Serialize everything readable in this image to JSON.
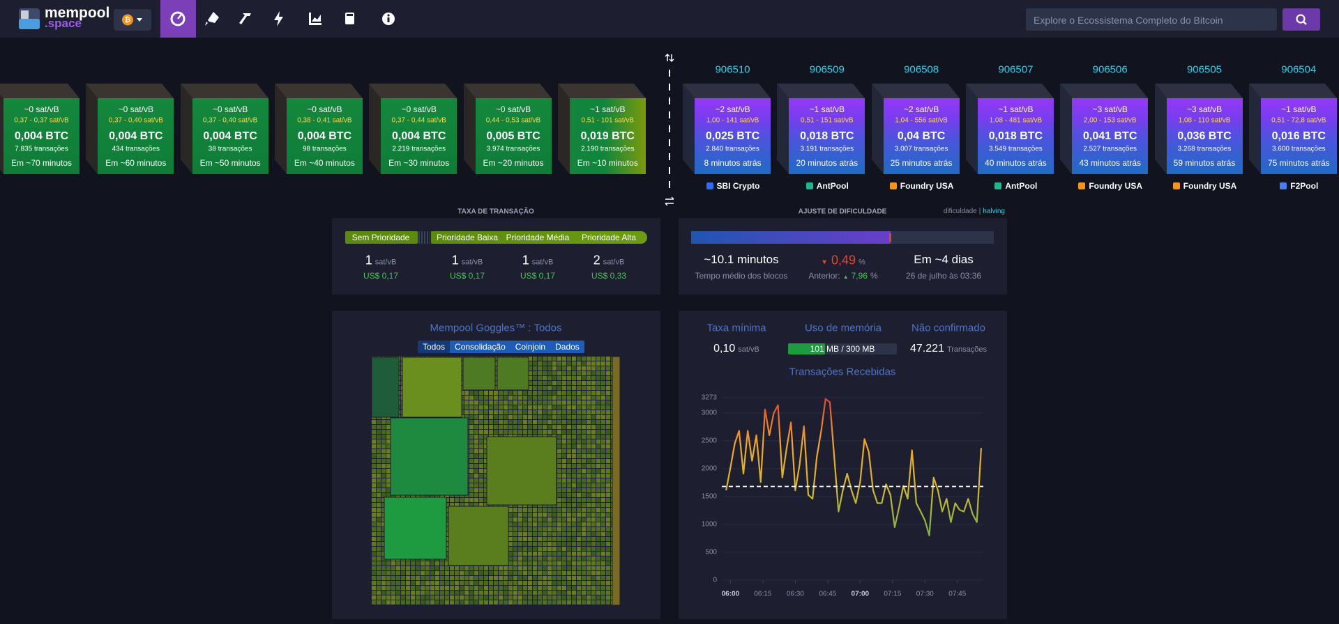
{
  "header": {
    "logo_top": "mempool",
    "logo_bottom": ".space",
    "search_placeholder": "Explore o Ecossistema Completo do Bitcoin"
  },
  "mempool_blocks": [
    {
      "fee": "~0 sat/vB",
      "range": "0,37 - 0,37 sat/vB",
      "size": "0,004 BTC",
      "tx": "7.835 transações",
      "eta": "Em ~70 minutos"
    },
    {
      "fee": "~0 sat/vB",
      "range": "0,37 - 0,40 sat/vB",
      "size": "0,004 BTC",
      "tx": "434 transações",
      "eta": "Em ~60 minutos"
    },
    {
      "fee": "~0 sat/vB",
      "range": "0,37 - 0,40 sat/vB",
      "size": "0,004 BTC",
      "tx": "38 transações",
      "eta": "Em ~50 minutos"
    },
    {
      "fee": "~0 sat/vB",
      "range": "0,38 - 0,41 sat/vB",
      "size": "0,004 BTC",
      "tx": "98 transações",
      "eta": "Em ~40 minutos"
    },
    {
      "fee": "~0 sat/vB",
      "range": "0,37 - 0,44 sat/vB",
      "size": "0,004 BTC",
      "tx": "2.219 transações",
      "eta": "Em ~30 minutos"
    },
    {
      "fee": "~0 sat/vB",
      "range": "0,44 - 0,53 sat/vB",
      "size": "0,005 BTC",
      "tx": "3.974 transações",
      "eta": "Em ~20 minutos"
    },
    {
      "fee": "~1 sat/vB",
      "range": "0,51 - 101 sat/vB",
      "size": "0,019 BTC",
      "tx": "2.190 transações",
      "eta": "Em ~10 minutos"
    }
  ],
  "blocks": [
    {
      "height": "906510",
      "fee": "~2 sat/vB",
      "range": "1,00 - 141 sat/vB",
      "size": "0,025 BTC",
      "tx": "2.840 transações",
      "time": "8 minutos atrás",
      "pool": "SBI Crypto"
    },
    {
      "height": "906509",
      "fee": "~1 sat/vB",
      "range": "0,51 - 151 sat/vB",
      "size": "0,018 BTC",
      "tx": "3.191 transações",
      "time": "20 minutos atrás",
      "pool": "AntPool"
    },
    {
      "height": "906508",
      "fee": "~2 sat/vB",
      "range": "1,04 - 556 sat/vB",
      "size": "0,04 BTC",
      "tx": "3.007 transações",
      "time": "25 minutos atrás",
      "pool": "Foundry USA"
    },
    {
      "height": "906507",
      "fee": "~1 sat/vB",
      "range": "1,08 - 481 sat/vB",
      "size": "0,018 BTC",
      "tx": "3.549 transações",
      "time": "40 minutos atrás",
      "pool": "AntPool"
    },
    {
      "height": "906506",
      "fee": "~3 sat/vB",
      "range": "2,00 - 153 sat/vB",
      "size": "0,041 BTC",
      "tx": "2.527 transações",
      "time": "43 minutos atrás",
      "pool": "Foundry USA"
    },
    {
      "height": "906505",
      "fee": "~3 sat/vB",
      "range": "1,08 - 110 sat/vB",
      "size": "0,036 BTC",
      "tx": "3.268 transações",
      "time": "59 minutos atrás",
      "pool": "Foundry USA"
    },
    {
      "height": "906504",
      "fee": "~1 sat/vB",
      "range": "0,51 - 72,8 sat/vB",
      "size": "0,016 BTC",
      "tx": "3.600 transações",
      "time": "75 minutos atrás",
      "pool": "F2Pool"
    }
  ],
  "fees": {
    "title": "TAXA DE TRANSAÇÃO",
    "priorities": [
      {
        "label": "Sem Prioridade",
        "value": 1,
        "unit": "sat/vB",
        "usd": "US$ 0,17"
      },
      {
        "label": "Prioridade Baixa",
        "value": 1,
        "unit": "sat/vB",
        "usd": "US$ 0,17"
      },
      {
        "label": "Prioridade Média",
        "value": 1,
        "unit": "sat/vB",
        "usd": "US$ 0,17"
      },
      {
        "label": "Prioridade Alta",
        "value": 2,
        "unit": "sat/vB",
        "usd": "US$ 0,33"
      }
    ]
  },
  "difficulty": {
    "title": "AJUSTE DE DIFICULDADE",
    "link_difficulty": "dificuldade",
    "separator": "|",
    "link_halving": "halving",
    "progress": 66,
    "avg_time": "~10.1 minutos",
    "avg_label": "Tempo médio dos blocos",
    "change": "0,49",
    "change_unit": "%",
    "previous_label": "Anterior:",
    "previous": "7,96",
    "previous_unit": "%",
    "eta": "Em ~4 dias",
    "eta_date": "26 de julho às 03:36"
  },
  "goggles": {
    "title": "Mempool Goggles™ : Todos",
    "tabs": [
      "Todos",
      "Consolidação",
      "Coinjoin",
      "Dados"
    ]
  },
  "stats": {
    "min_fee_label": "Taxa mínima",
    "min_fee": "0,10",
    "min_fee_unit": "sat/vB",
    "memory_label": "Uso de memória",
    "memory": "101 MB / 300 MB",
    "memory_used": 101,
    "memory_total": 300,
    "unconfirmed_label": "Não confirmado",
    "unconfirmed": "47.221",
    "unconfirmed_unit": "Transações"
  },
  "chart_data": {
    "type": "line",
    "title": "Transações Recebidas",
    "x": [
      "05:58",
      "06:00",
      "06:02",
      "06:04",
      "06:06",
      "06:08",
      "06:10",
      "06:12",
      "06:14",
      "06:16",
      "06:18",
      "06:20",
      "06:22",
      "06:24",
      "06:26",
      "06:28",
      "06:30",
      "06:32",
      "06:34",
      "06:36",
      "06:38",
      "06:40",
      "06:42",
      "06:44",
      "06:46",
      "06:48",
      "06:50",
      "06:52",
      "06:54",
      "06:56",
      "06:58",
      "07:00",
      "07:02",
      "07:04",
      "07:06",
      "07:08",
      "07:10",
      "07:12",
      "07:14",
      "07:16",
      "07:18",
      "07:20",
      "07:22",
      "07:24",
      "07:26",
      "07:28",
      "07:30",
      "07:32",
      "07:34",
      "07:36",
      "07:38",
      "07:40",
      "07:42",
      "07:44",
      "07:46",
      "07:48",
      "07:50",
      "07:52",
      "07:54",
      "07:56"
    ],
    "series": [
      {
        "values": [
          1610,
          2020,
          2450,
          2680,
          1910,
          2680,
          2140,
          2600,
          1760,
          3060,
          2600,
          2990,
          3140,
          1840,
          2370,
          2830,
          1610,
          2070,
          2760,
          1530,
          1460,
          2220,
          2680,
          3250,
          3190,
          2220,
          1230,
          1610,
          1910,
          1610,
          1380,
          1760,
          2530,
          2300,
          1610,
          1380,
          1380,
          1720,
          1530,
          950,
          1300,
          1690,
          1460,
          2330,
          1380,
          1230,
          1070,
          800,
          1840,
          1610,
          1230,
          1460,
          1040,
          1380,
          1260,
          1230,
          1460,
          1190,
          1040,
          2370
        ]
      }
    ],
    "xlim": [
      "05:56",
      "07:57"
    ],
    "ylim": [
      0,
      3273
    ],
    "yticks": [
      0,
      500,
      1000,
      1500,
      2000,
      2500,
      3000,
      3273
    ],
    "xticks": [
      "06:00",
      "06:15",
      "06:30",
      "06:45",
      "07:00",
      "07:15",
      "07:30",
      "07:45"
    ],
    "reference": 1680,
    "colors": [
      "#7cb342",
      "#7cb342",
      "#d4b92a",
      "#f5a623",
      "#e5432d"
    ],
    "grid": true
  }
}
